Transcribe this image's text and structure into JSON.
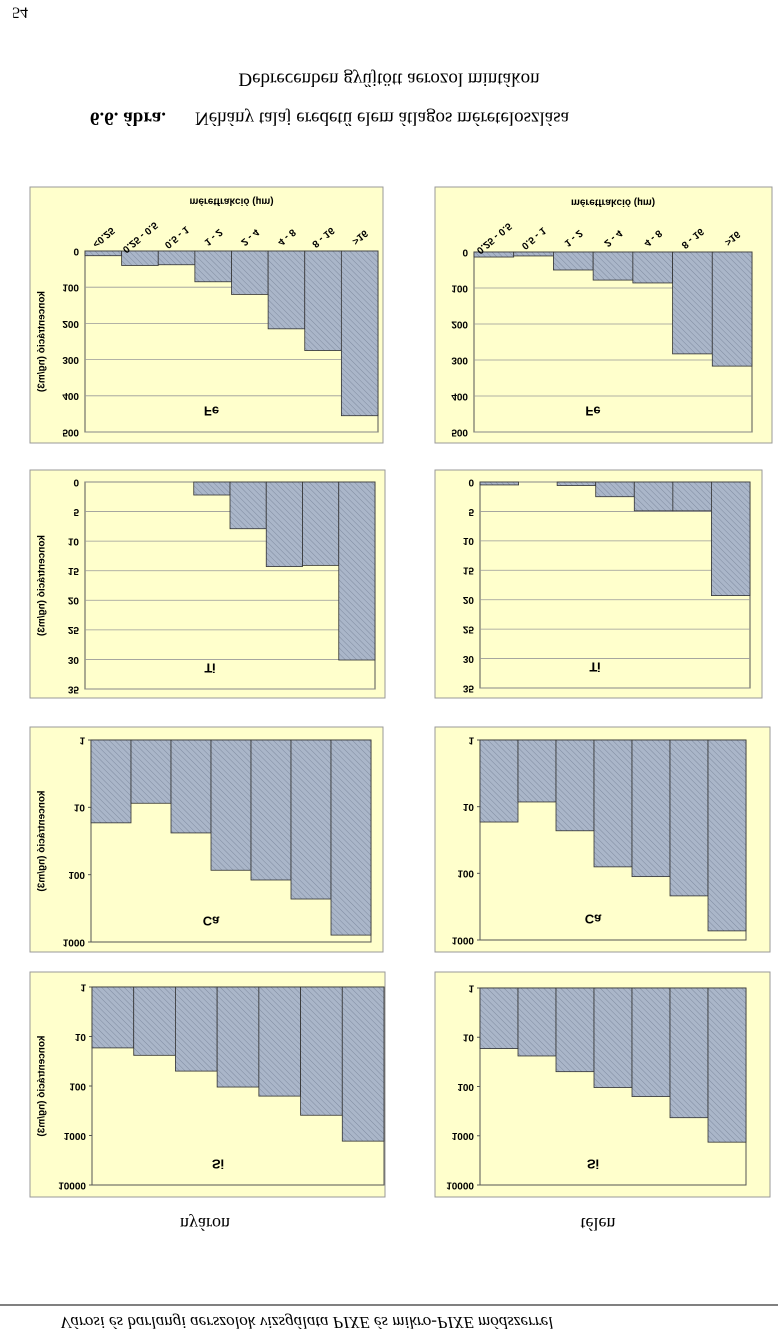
{
  "header": "Városi és barlangi aerszolok vizsgálata PIXE és mikro-PIXE módszerrel",
  "column_labels": [
    "nyáron",
    "télen"
  ],
  "caption": {
    "number": "6.6. ábra.",
    "text": "Néhány talaj eredetű elem átlagos méreteloszlása",
    "line2": "Debrecenben gyűjtött aerozol mintákon"
  },
  "page_number": "54",
  "chart_data": [
    {
      "type": "bar",
      "title": "Fe",
      "ylabel": "koncentráció (ng/m3)",
      "xlabel": "méretfrakció (µm)",
      "categories": [
        "<0.25",
        "0.25 - 0.5",
        "0.5 - 1",
        "1 - 2",
        "2 - 4",
        "4 - 8",
        "8 - 16",
        ">16"
      ],
      "values": [
        13,
        40,
        38,
        85,
        120,
        215,
        275,
        455
      ],
      "ylim": [
        0,
        500
      ],
      "yticks": [
        0,
        100,
        200,
        300,
        400,
        500
      ],
      "color": "#aab6c9",
      "grid": true
    },
    {
      "type": "bar",
      "title": "Fe",
      "xlabel": "méretfrakció (µm)",
      "categories": [
        "0.25 - 0.5",
        "0.5 - 1",
        "1 - 2",
        "2 - 4",
        "4 - 8",
        "8 - 16",
        ">16"
      ],
      "values": [
        14,
        11,
        50,
        78,
        86,
        283,
        317
      ],
      "ylim": [
        0,
        500
      ],
      "yticks": [
        0,
        100,
        200,
        300,
        400,
        500
      ],
      "color": "#aab6c9",
      "grid": true
    },
    {
      "type": "bar",
      "title": "Ti",
      "ylabel": "koncentráció (ng/m3)",
      "values": [
        null,
        null,
        null,
        2.2,
        7.9,
        14.3,
        14.1,
        30.1
      ],
      "ylim": [
        0,
        35
      ],
      "yticks": [
        0,
        5,
        10,
        15,
        20,
        25,
        30,
        35
      ],
      "color": "#aab6c9",
      "grid": true
    },
    {
      "type": "bar",
      "title": "Ti",
      "values": [
        0.5,
        null,
        0.6,
        2.5,
        4.9,
        4.9,
        19.3
      ],
      "ylim": [
        0,
        35
      ],
      "yticks": [
        0,
        5,
        10,
        15,
        20,
        25,
        30,
        35
      ],
      "color": "#aab6c9",
      "grid": true
    },
    {
      "type": "bar",
      "title": "Ca",
      "ylabel": "koncentráció (ng/m3)",
      "values": [
        17,
        8.7,
        24,
        86,
        120,
        230,
        790
      ],
      "ylim": [
        1,
        1000
      ],
      "yticks": [
        1,
        10,
        100,
        1000
      ],
      "log": true,
      "color": "#aab6c9",
      "grid": false
    },
    {
      "type": "bar",
      "title": "Ca",
      "values": [
        17,
        8.5,
        23,
        80,
        112,
        218,
        730
      ],
      "ylim": [
        1,
        1000
      ],
      "yticks": [
        1,
        10,
        100,
        1000
      ],
      "log": true,
      "color": "#aab6c9",
      "grid": false
    },
    {
      "type": "bar",
      "title": "Si",
      "ylabel": "koncentráció (ng/m3)",
      "values": [
        17,
        24,
        50,
        105,
        160,
        390,
        1300
      ],
      "ylim": [
        1,
        10000
      ],
      "yticks": [
        1,
        10,
        100,
        1000,
        10000
      ],
      "log": true,
      "color": "#aab6c9",
      "grid": false
    },
    {
      "type": "bar",
      "title": "Si",
      "values": [
        17,
        24,
        50,
        105,
        160,
        430,
        1350
      ],
      "ylim": [
        1,
        10000
      ],
      "yticks": [
        1,
        10,
        100,
        1000,
        10000
      ],
      "log": true,
      "color": "#aab6c9",
      "grid": false
    }
  ]
}
